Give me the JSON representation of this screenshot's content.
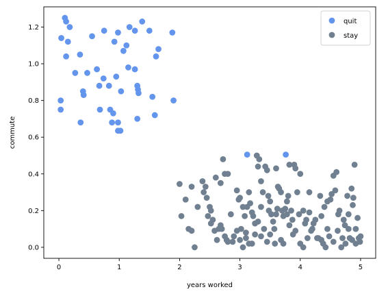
{
  "chart_data": {
    "type": "scatter",
    "title": "",
    "xlabel": "years worked",
    "ylabel": "commute",
    "xlim": [
      -0.25,
      5.25
    ],
    "ylim": [
      -0.06,
      1.31
    ],
    "xticks": [
      0,
      1,
      2,
      3,
      4,
      5
    ],
    "yticks": [
      0.0,
      0.2,
      0.4,
      0.6,
      0.8,
      1.0,
      1.2
    ],
    "grid": false,
    "legend_position": "top-right",
    "series": [
      {
        "name": "quit",
        "color": "#6495ed",
        "points": [
          [
            0.1,
            1.25
          ],
          [
            0.12,
            1.23
          ],
          [
            0.18,
            1.2
          ],
          [
            0.04,
            1.14
          ],
          [
            0.15,
            1.12
          ],
          [
            0.12,
            1.04
          ],
          [
            0.35,
            1.05
          ],
          [
            0.27,
            0.95
          ],
          [
            0.47,
            0.95
          ],
          [
            0.63,
            0.97
          ],
          [
            0.55,
            1.15
          ],
          [
            0.75,
            1.18
          ],
          [
            0.92,
            1.12
          ],
          [
            0.98,
            1.17
          ],
          [
            1.17,
            1.2
          ],
          [
            1.12,
            1.1
          ],
          [
            1.07,
            1.07
          ],
          [
            1.38,
            1.23
          ],
          [
            1.5,
            1.18
          ],
          [
            1.88,
            1.17
          ],
          [
            1.26,
            1.18
          ],
          [
            1.65,
            1.08
          ],
          [
            1.61,
            1.04
          ],
          [
            1.15,
            0.98
          ],
          [
            1.26,
            0.97
          ],
          [
            0.95,
            0.93
          ],
          [
            0.74,
            0.92
          ],
          [
            0.67,
            0.88
          ],
          [
            0.83,
            0.88
          ],
          [
            1.03,
            0.85
          ],
          [
            1.3,
            0.88
          ],
          [
            1.31,
            0.86
          ],
          [
            1.32,
            0.84
          ],
          [
            1.55,
            0.82
          ],
          [
            0.4,
            0.85
          ],
          [
            0.41,
            0.83
          ],
          [
            0.03,
            0.8
          ],
          [
            1.9,
            0.8
          ],
          [
            0.03,
            0.75
          ],
          [
            0.68,
            0.75
          ],
          [
            0.85,
            0.75
          ],
          [
            0.9,
            0.73
          ],
          [
            1.59,
            0.72
          ],
          [
            1.3,
            0.7
          ],
          [
            0.36,
            0.68
          ],
          [
            0.88,
            0.68
          ],
          [
            0.98,
            0.68
          ],
          [
            0.98,
            0.635
          ],
          [
            1.02,
            0.635
          ],
          [
            3.12,
            0.505
          ],
          [
            3.76,
            0.505
          ]
        ]
      },
      {
        "name": "stay",
        "color": "#708090",
        "points": [
          [
            2.0,
            0.345
          ],
          [
            2.1,
            0.26
          ],
          [
            2.2,
            0.33
          ],
          [
            2.03,
            0.17
          ],
          [
            2.15,
            0.1
          ],
          [
            2.2,
            0.09
          ],
          [
            2.25,
            0.0
          ],
          [
            2.3,
            0.22
          ],
          [
            2.4,
            0.3
          ],
          [
            2.43,
            0.33
          ],
          [
            2.38,
            0.36
          ],
          [
            2.45,
            0.27
          ],
          [
            2.5,
            0.22
          ],
          [
            2.52,
            0.2
          ],
          [
            2.47,
            0.17
          ],
          [
            2.55,
            0.15
          ],
          [
            2.6,
            0.38
          ],
          [
            2.65,
            0.1
          ],
          [
            2.68,
            0.35
          ],
          [
            2.72,
            0.48
          ],
          [
            2.75,
            0.4
          ],
          [
            2.8,
            0.4
          ],
          [
            2.7,
            0.1
          ],
          [
            2.75,
            0.06
          ],
          [
            2.8,
            0.03
          ],
          [
            2.85,
            0.18
          ],
          [
            2.9,
            0.06
          ],
          [
            2.95,
            0.31
          ],
          [
            2.98,
            0.26
          ],
          [
            3.05,
            0.22
          ],
          [
            3.08,
            0.17
          ],
          [
            3.02,
            0.1
          ],
          [
            3.1,
            0.08
          ],
          [
            3.15,
            0.3
          ],
          [
            3.17,
            0.24
          ],
          [
            3.2,
            0.19
          ],
          [
            3.22,
            0.17
          ],
          [
            3.25,
            0.13
          ],
          [
            3.28,
            0.5
          ],
          [
            3.3,
            0.44
          ],
          [
            3.32,
            0.48
          ],
          [
            3.35,
            0.36
          ],
          [
            3.38,
            0.3
          ],
          [
            3.42,
            0.44
          ],
          [
            3.45,
            0.42
          ],
          [
            3.47,
            0.28
          ],
          [
            3.48,
            0.2
          ],
          [
            3.5,
            0.25
          ],
          [
            3.52,
            0.18
          ],
          [
            3.55,
            0.14
          ],
          [
            3.57,
            0.1
          ],
          [
            3.6,
            0.43
          ],
          [
            3.63,
            0.33
          ],
          [
            3.65,
            0.32
          ],
          [
            3.68,
            0.3
          ],
          [
            3.7,
            0.2
          ],
          [
            3.72,
            0.17
          ],
          [
            3.78,
            0.25
          ],
          [
            3.8,
            0.28
          ],
          [
            3.82,
            0.45
          ],
          [
            3.85,
            0.2
          ],
          [
            3.87,
            0.15
          ],
          [
            3.9,
            0.45
          ],
          [
            3.92,
            0.43
          ],
          [
            3.95,
            0.3
          ],
          [
            3.98,
            0.18
          ],
          [
            4.0,
            0.4
          ],
          [
            4.05,
            0.2
          ],
          [
            4.08,
            0.13
          ],
          [
            4.1,
            0.15
          ],
          [
            4.12,
            0.05
          ],
          [
            4.15,
            0.3
          ],
          [
            4.2,
            0.1
          ],
          [
            4.25,
            0.15
          ],
          [
            4.3,
            0.05
          ],
          [
            4.33,
            0.28
          ],
          [
            4.38,
            0.02
          ],
          [
            4.4,
            0.22
          ],
          [
            4.45,
            0.1
          ],
          [
            4.45,
            0.25
          ],
          [
            4.5,
            0.26
          ],
          [
            4.52,
            0.29
          ],
          [
            4.55,
            0.39
          ],
          [
            4.58,
            0.31
          ],
          [
            4.6,
            0.41
          ],
          [
            4.63,
            0.18
          ],
          [
            4.65,
            0.2
          ],
          [
            4.7,
            0.05
          ],
          [
            4.72,
            0.15
          ],
          [
            4.75,
            0.02
          ],
          [
            4.78,
            0.28
          ],
          [
            4.8,
            0.18
          ],
          [
            4.82,
            0.05
          ],
          [
            4.85,
            0.32
          ],
          [
            4.87,
            0.23
          ],
          [
            4.88,
            0.27
          ],
          [
            4.9,
            0.45
          ],
          [
            4.92,
            0.1
          ],
          [
            4.95,
            0.16
          ],
          [
            4.97,
            0.05
          ],
          [
            4.99,
            0.03
          ],
          [
            5.0,
            0.06
          ],
          [
            2.52,
            0.13
          ],
          [
            2.58,
            0.09
          ],
          [
            2.62,
            0.04
          ],
          [
            2.68,
            0.12
          ],
          [
            2.78,
            0.04
          ],
          [
            2.88,
            0.03
          ],
          [
            2.95,
            0.09
          ],
          [
            3.0,
            0.04
          ],
          [
            3.05,
            0.0
          ],
          [
            3.1,
            0.05
          ],
          [
            3.15,
            0.02
          ],
          [
            3.2,
            0.02
          ],
          [
            3.25,
            0.07
          ],
          [
            3.3,
            0.14
          ],
          [
            3.35,
            0.06
          ],
          [
            3.4,
            0.1
          ],
          [
            3.45,
            0.03
          ],
          [
            3.5,
            0.07
          ],
          [
            3.58,
            0.02
          ],
          [
            3.62,
            0.21
          ],
          [
            3.68,
            0.04
          ],
          [
            3.72,
            0.02
          ],
          [
            3.78,
            0.18
          ],
          [
            3.82,
            0.12
          ],
          [
            3.88,
            0.07
          ],
          [
            3.92,
            0.09
          ],
          [
            4.0,
            0.02
          ],
          [
            4.05,
            0.0
          ],
          [
            4.18,
            0.09
          ],
          [
            4.22,
            0.13
          ],
          [
            4.28,
            0.05
          ],
          [
            4.35,
            0.04
          ],
          [
            4.42,
            0.0
          ],
          [
            4.48,
            0.06
          ],
          [
            4.55,
            0.03
          ],
          [
            4.62,
            0.09
          ],
          [
            4.68,
            0.0
          ],
          [
            4.74,
            0.12
          ],
          [
            4.8,
            0.1
          ],
          [
            4.86,
            0.04
          ],
          [
            4.92,
            0.02
          ],
          [
            3.0,
            0.27
          ],
          [
            3.12,
            0.22
          ],
          [
            3.35,
            0.22
          ],
          [
            3.6,
            0.18
          ],
          [
            3.75,
            0.21
          ],
          [
            4.15,
            0.19
          ],
          [
            4.35,
            0.17
          ]
        ]
      }
    ]
  }
}
